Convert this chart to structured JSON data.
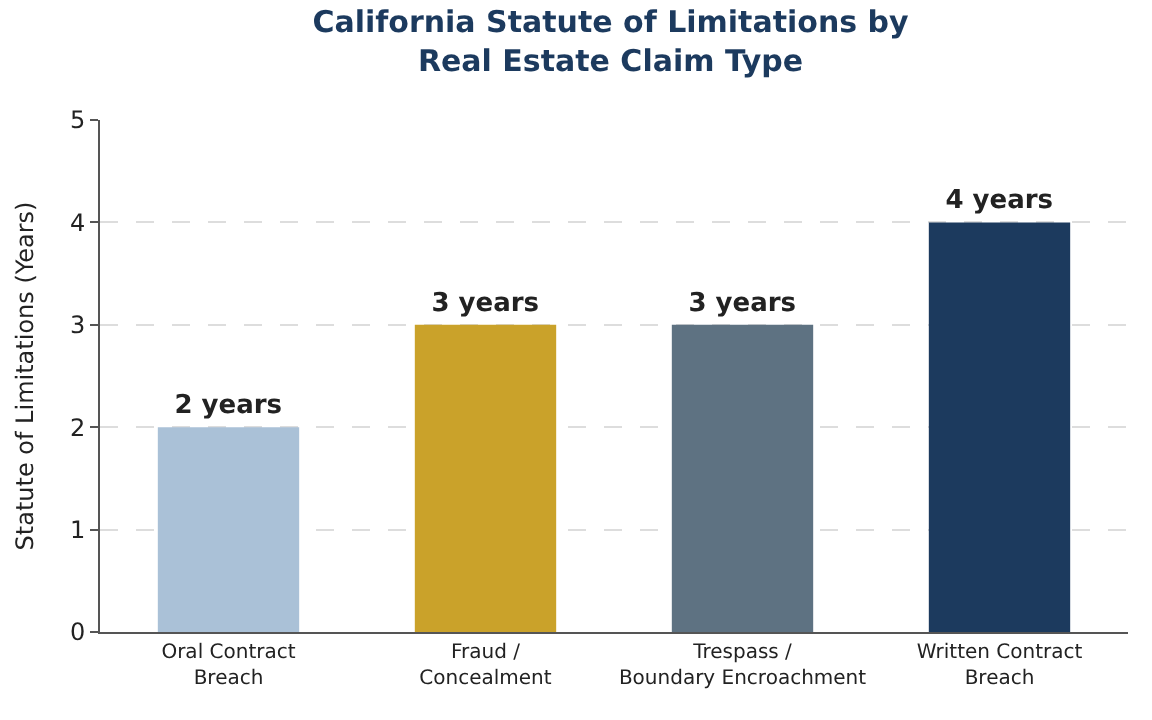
{
  "chart_data": {
    "type": "bar",
    "title": "California Statute of Limitations by\nReal Estate Claim Type",
    "ylabel": "Statute of Limitations (Years)",
    "categories": [
      "Oral Contract\nBreach",
      "Fraud /\nConcealment",
      "Trespass /\nBoundary Encroachment",
      "Written Contract\nBreach"
    ],
    "values": [
      2,
      3,
      3,
      4
    ],
    "colors": [
      "#aac1d7",
      "#caa22a",
      "#5e7282",
      "#1c3a5e"
    ],
    "value_labels": [
      "2 years",
      "3 years",
      "3 years",
      "4 years"
    ],
    "ylim": [
      0,
      5
    ],
    "yticks": [
      0,
      1,
      2,
      3,
      4,
      5
    ],
    "grid": "y"
  }
}
